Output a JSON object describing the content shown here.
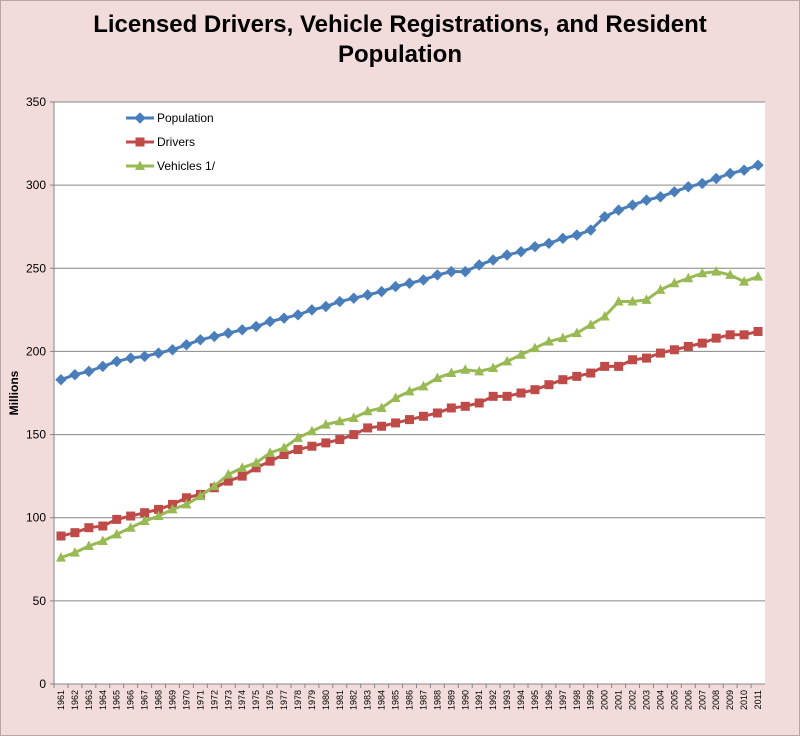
{
  "chart_data": {
    "type": "line",
    "title_line1": "Licensed Drivers, Vehicle Registrations, and Resident",
    "title_line2": "Population",
    "ylabel": "Millions",
    "xlabel": "",
    "ylim": [
      0,
      350
    ],
    "yticks": [
      0,
      50,
      100,
      150,
      200,
      250,
      300,
      350
    ],
    "grid": true,
    "legend": "top-left",
    "x": [
      "1961",
      "1962",
      "1963",
      "1964",
      "1965",
      "1966",
      "1967",
      "1968",
      "1969",
      "1970",
      "1971",
      "1972",
      "1973",
      "1974",
      "1975",
      "1976",
      "1977",
      "1978",
      "1979",
      "1980",
      "1981",
      "1982",
      "1983",
      "1984",
      "1985",
      "1986",
      "1987",
      "1988",
      "1989",
      "1990",
      "1991",
      "1992",
      "1993",
      "1994",
      "1995",
      "1996",
      "1997",
      "1998",
      "1999",
      "2000",
      "2001",
      "2002",
      "2003",
      "2004",
      "2005",
      "2006",
      "2007",
      "2008",
      "2009",
      "2010",
      "2011"
    ],
    "series": [
      {
        "name": "Population",
        "color": "#4a7ebb",
        "marker": "diamond",
        "values": [
          183,
          186,
          188,
          191,
          194,
          196,
          197,
          199,
          201,
          204,
          207,
          209,
          211,
          213,
          215,
          218,
          220,
          222,
          225,
          227,
          230,
          232,
          234,
          236,
          239,
          241,
          243,
          246,
          248,
          248,
          252,
          255,
          258,
          260,
          263,
          265,
          268,
          270,
          273,
          281,
          285,
          288,
          291,
          293,
          296,
          299,
          301,
          304,
          307,
          309,
          312
        ]
      },
      {
        "name": "Drivers",
        "color": "#be4b48",
        "marker": "square",
        "values": [
          89,
          91,
          94,
          95,
          99,
          101,
          103,
          105,
          108,
          112,
          114,
          118,
          122,
          125,
          130,
          134,
          138,
          141,
          143,
          145,
          147,
          150,
          154,
          155,
          157,
          159,
          161,
          163,
          166,
          167,
          169,
          173,
          173,
          175,
          177,
          180,
          183,
          185,
          187,
          191,
          191,
          195,
          196,
          199,
          201,
          203,
          205,
          208,
          210,
          210,
          212
        ]
      },
      {
        "name": "Vehicles 1/",
        "color": "#98b954",
        "marker": "triangle",
        "values": [
          76,
          79,
          83,
          86,
          90,
          94,
          98,
          101,
          105,
          108,
          113,
          119,
          126,
          130,
          133,
          139,
          142,
          148,
          152,
          156,
          158,
          160,
          164,
          166,
          172,
          176,
          179,
          184,
          187,
          189,
          188,
          190,
          194,
          198,
          202,
          206,
          208,
          211,
          216,
          221,
          230,
          230,
          231,
          237,
          241,
          244,
          247,
          248,
          246,
          242,
          245
        ]
      }
    ]
  }
}
